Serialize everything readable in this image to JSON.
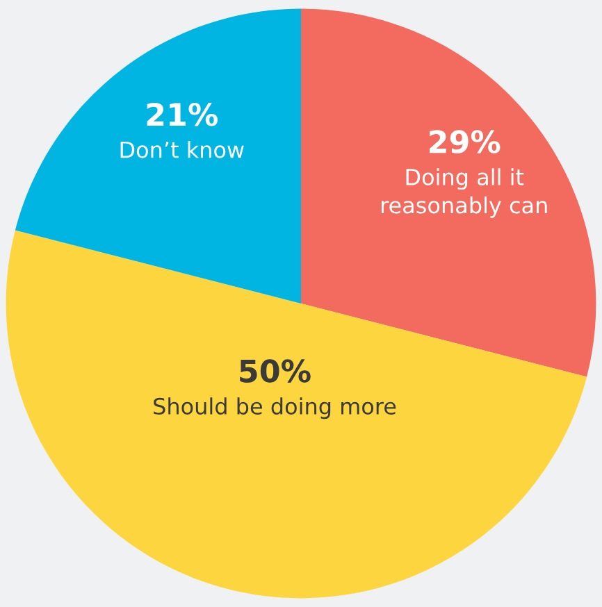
{
  "chart_data": {
    "type": "pie",
    "categories": [
      "Doing all it\nreasonably can",
      "Should be doing more",
      "Don’t know"
    ],
    "values": [
      29,
      50,
      21
    ],
    "value_labels": [
      "29%",
      "50%",
      "21%"
    ],
    "colors": [
      "#f26b5e",
      "#fdd63f",
      "#00b5e2"
    ]
  }
}
